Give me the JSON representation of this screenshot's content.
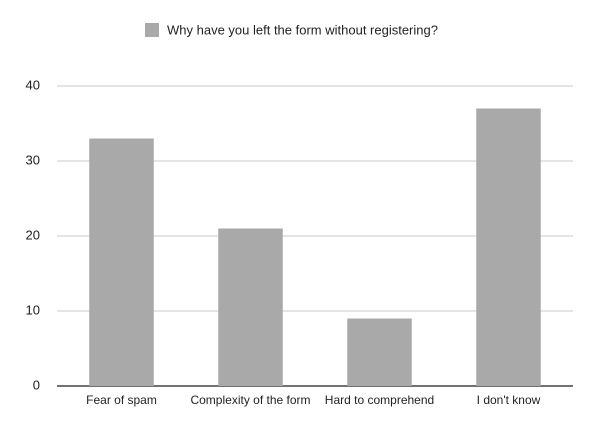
{
  "chart_data": {
    "type": "bar",
    "categories": [
      "Fear of spam",
      "Complexity of the form",
      "Hard to comprehend",
      "I don't know"
    ],
    "series": [
      {
        "name": "Why have you left the form without registering?",
        "color": "#a9a9a9",
        "values": [
          33,
          21,
          9,
          37
        ]
      }
    ],
    "ylim": [
      0,
      40
    ],
    "yticks": [
      0,
      10,
      20,
      30,
      40
    ],
    "grid": true,
    "legend": "top"
  }
}
